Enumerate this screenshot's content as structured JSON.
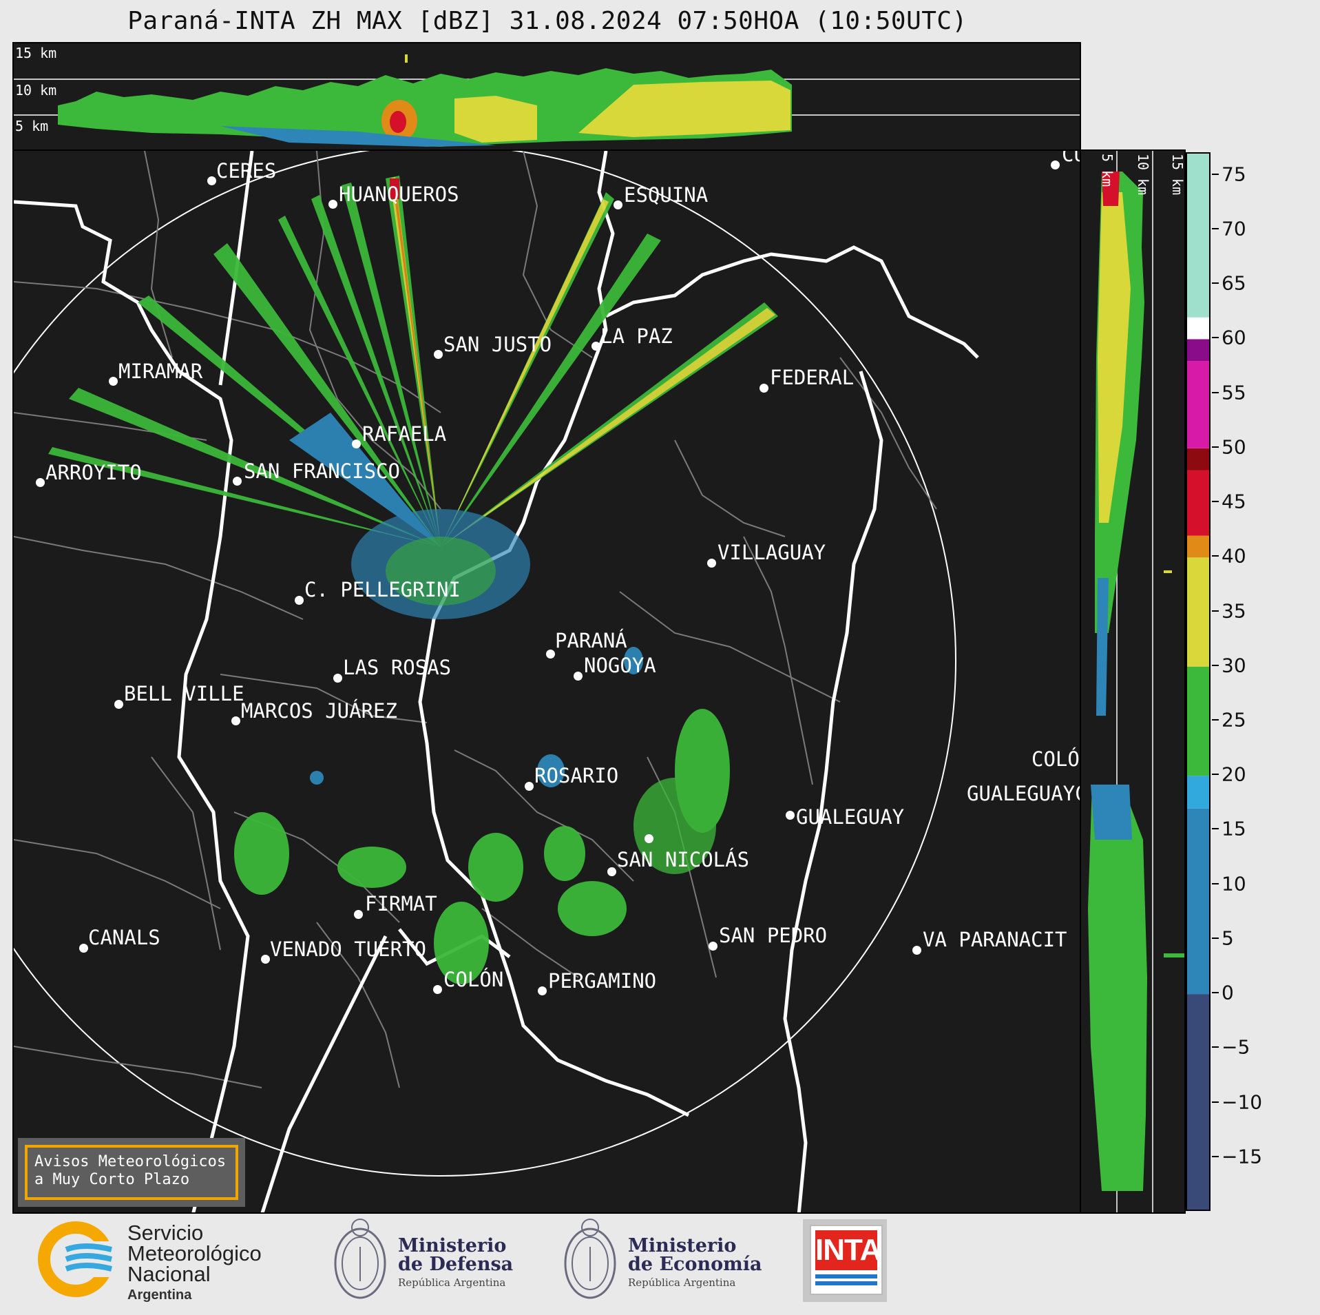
{
  "title": "Paraná-INTA ZH MAX [dBZ] 31.08.2024 07:50HOA (10:50UTC)",
  "top_panel": {
    "altitude_labels": [
      "15 km",
      "10 km",
      "5 km"
    ]
  },
  "side_panel": {
    "altitude_labels": [
      "5 km",
      "10 km",
      "15 km"
    ]
  },
  "colorbar": {
    "unit": "dBZ",
    "tick_labels": [
      "75",
      "70",
      "65",
      "60",
      "55",
      "50",
      "45",
      "40",
      "35",
      "30",
      "25",
      "20",
      "15",
      "10",
      "5",
      "0",
      "−5",
      "−10",
      "−15"
    ],
    "range": [
      -20,
      77
    ],
    "color_stops": [
      {
        "from": -20,
        "to": 0,
        "color": "#3a4a78"
      },
      {
        "from": 0,
        "to": 17,
        "color": "#2e86b8"
      },
      {
        "from": 17,
        "to": 20,
        "color": "#31a9dd"
      },
      {
        "from": 20,
        "to": 30,
        "color": "#3cb83a"
      },
      {
        "from": 30,
        "to": 40,
        "color": "#d8d83a"
      },
      {
        "from": 40,
        "to": 42,
        "color": "#e08a18"
      },
      {
        "from": 42,
        "to": 48,
        "color": "#d4102a"
      },
      {
        "from": 48,
        "to": 50,
        "color": "#8c0a10"
      },
      {
        "from": 50,
        "to": 58,
        "color": "#d81aa8"
      },
      {
        "from": 58,
        "to": 60,
        "color": "#8a0c8a"
      },
      {
        "from": 60,
        "to": 62,
        "color": "#ffffff"
      },
      {
        "from": 62,
        "to": 77,
        "color": "#9fe0cc"
      }
    ]
  },
  "map": {
    "radar_site": "PARANÁ",
    "cities": [
      {
        "name": "CERES"
      },
      {
        "name": "HUANQUEROS"
      },
      {
        "name": "ESQUINA"
      },
      {
        "name": "CU"
      },
      {
        "name": "SAN JUSTO"
      },
      {
        "name": "LA PAZ"
      },
      {
        "name": "MIRAMAR"
      },
      {
        "name": "FEDERAL"
      },
      {
        "name": "RAFAELA"
      },
      {
        "name": "ARROYITO"
      },
      {
        "name": "SAN FRANCISCO"
      },
      {
        "name": "PARANÁ"
      },
      {
        "name": "VILLAGUAY"
      },
      {
        "name": "C. PELLEGRINI"
      },
      {
        "name": "COLÓ"
      },
      {
        "name": "NOGOYA"
      },
      {
        "name": "LAS ROSAS"
      },
      {
        "name": "BELL VILLE"
      },
      {
        "name": "MARCOS JUÁREZ"
      },
      {
        "name": "ROSARIO"
      },
      {
        "name": "GUALEGUAYC"
      },
      {
        "name": "GUALEGUAY"
      },
      {
        "name": "SAN NICOLÁS"
      },
      {
        "name": "FIRMAT"
      },
      {
        "name": "CANALS"
      },
      {
        "name": "SAN PEDRO"
      },
      {
        "name": "VENADO TUERTO"
      },
      {
        "name": "VA PARANACIT"
      },
      {
        "name": "COLÓN"
      },
      {
        "name": "PERGAMINO"
      }
    ]
  },
  "avisos": {
    "line1": "Avisos Meteorológicos",
    "line2": "a Muy Corto Plazo"
  },
  "logos": {
    "smn": {
      "line1": "Servicio",
      "line2": "Meteorológico",
      "line3": "Nacional",
      "line4": "Argentina"
    },
    "defensa": {
      "line1": "Ministerio",
      "line2": "de Defensa",
      "line3": "República Argentina"
    },
    "economia": {
      "line1": "Ministerio",
      "line2": "de Economía",
      "line3": "República Argentina"
    },
    "inta": {
      "text": "INTA"
    }
  }
}
